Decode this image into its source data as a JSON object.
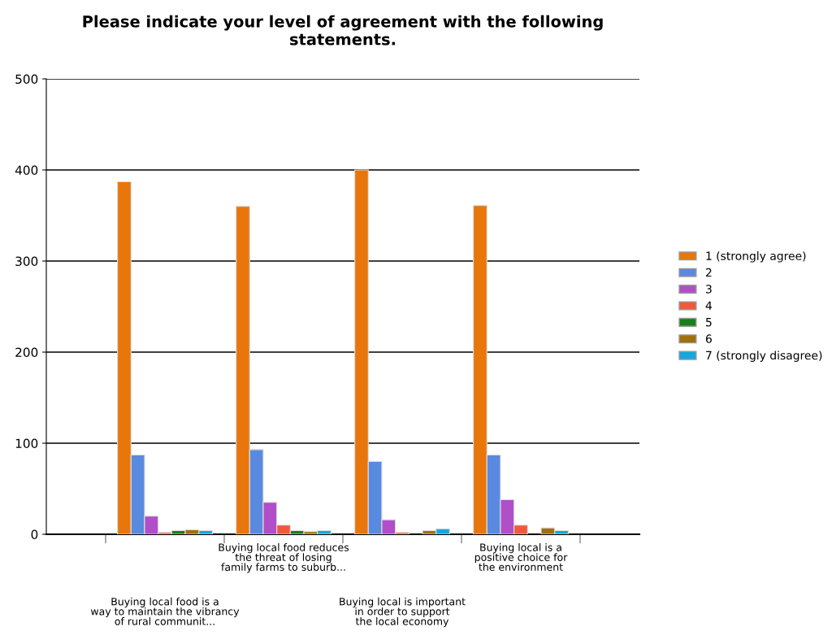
{
  "chart_data": {
    "type": "bar",
    "title": "Please indicate your level of agreement with the following\nstatements.",
    "categories": [
      "Buying local food is a\nway to maintain the vibrancy\nof rural communit...",
      "Buying local food reduces\nthe threat of losing\nfamily farms to suburb...",
      "Buying local is important\nin order to support\nthe local economy",
      "Buying local is a\npositive choice for\nthe environment"
    ],
    "series": [
      {
        "name": "1 (strongly agree)",
        "color": "#e8760a",
        "values": [
          387,
          360,
          400,
          361
        ]
      },
      {
        "name": "2",
        "color": "#5a8ae0",
        "values": [
          87,
          93,
          80,
          87
        ]
      },
      {
        "name": "3",
        "color": "#b04fc9",
        "values": [
          20,
          35,
          16,
          38
        ]
      },
      {
        "name": "4",
        "color": "#f05a3c",
        "values": [
          2,
          10,
          2,
          10
        ]
      },
      {
        "name": "5",
        "color": "#1a7f1a",
        "values": [
          4,
          4,
          null,
          null
        ]
      },
      {
        "name": "6",
        "color": "#a07010",
        "values": [
          5,
          3,
          4,
          7
        ]
      },
      {
        "name": "7 (strongly disagree)",
        "color": "#12a8e0",
        "values": [
          4,
          4,
          6,
          4
        ]
      }
    ],
    "ylim": [
      0,
      500
    ],
    "yticks": [
      0,
      100,
      200,
      300,
      400,
      500
    ],
    "grid": "y",
    "legend": "right"
  }
}
